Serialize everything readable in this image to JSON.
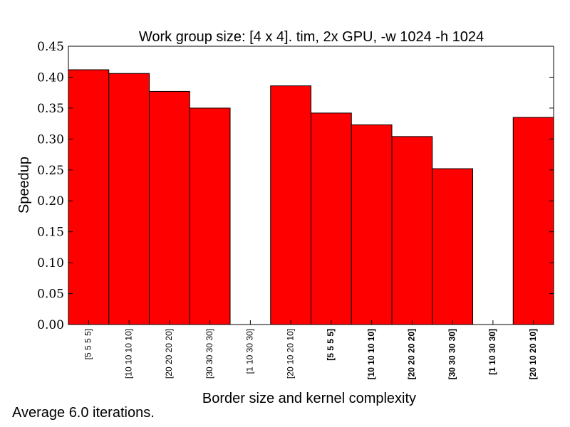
{
  "chart_data": {
    "type": "bar",
    "title": "Work group size: [4 x 4]. tim, 2x GPU, -w 1024 -h 1024",
    "xlabel": "Border size and kernel complexity",
    "ylabel": "Speedup",
    "ylim": [
      0,
      0.45
    ],
    "yticks": [
      "0.00",
      "0.05",
      "0.10",
      "0.15",
      "0.20",
      "0.25",
      "0.30",
      "0.35",
      "0.40",
      "0.45"
    ],
    "grid": false,
    "bar_color": "#ff0000",
    "categories": [
      "[5 5 5 5]",
      "[10 10 10 10]",
      "[20 20 20 20]",
      "[30 30 30 30]",
      "[1 10 30 30]",
      "[20 10 20 10]",
      "[5 5 5 5]",
      "[10 10 10 10]",
      "[20 20 20 20]",
      "[30 30 30 30]",
      "[1 10 30 30]",
      "[20 10 20 10]"
    ],
    "category_bold": [
      false,
      false,
      false,
      false,
      false,
      false,
      true,
      true,
      true,
      true,
      true,
      true
    ],
    "values": [
      0.412,
      0.406,
      0.377,
      0.35,
      0.0,
      0.386,
      0.342,
      0.323,
      0.304,
      0.252,
      0.0,
      0.335
    ]
  },
  "footnote": "Average 6.0 iterations."
}
